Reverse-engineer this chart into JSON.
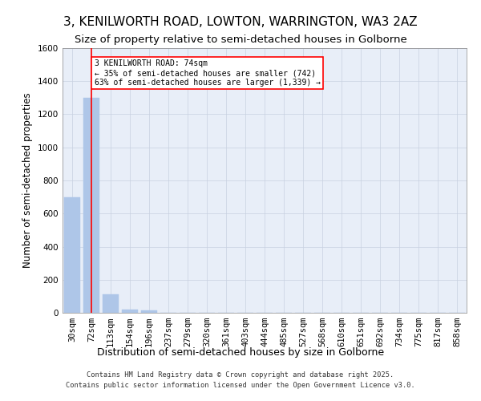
{
  "title": "3, KENILWORTH ROAD, LOWTON, WARRINGTON, WA3 2AZ",
  "subtitle": "Size of property relative to semi-detached houses in Golborne",
  "xlabel": "Distribution of semi-detached houses by size in Golborne",
  "ylabel": "Number of semi-detached properties",
  "categories": [
    "30sqm",
    "72sqm",
    "113sqm",
    "154sqm",
    "196sqm",
    "237sqm",
    "279sqm",
    "320sqm",
    "361sqm",
    "403sqm",
    "444sqm",
    "485sqm",
    "527sqm",
    "568sqm",
    "610sqm",
    "651sqm",
    "692sqm",
    "734sqm",
    "775sqm",
    "817sqm",
    "858sqm"
  ],
  "values": [
    700,
    1300,
    110,
    20,
    14,
    0,
    0,
    0,
    0,
    0,
    0,
    0,
    0,
    0,
    0,
    0,
    0,
    0,
    0,
    0,
    0
  ],
  "bar_color": "#aec6e8",
  "bar_edge_color": "#aec6e8",
  "grid_color": "#c8d0e0",
  "background_color": "#e8eef8",
  "red_line_index": 1,
  "annotation_text": "3 KENILWORTH ROAD: 74sqm\n← 35% of semi-detached houses are smaller (742)\n63% of semi-detached houses are larger (1,339) →",
  "ylim": [
    0,
    1600
  ],
  "yticks": [
    0,
    200,
    400,
    600,
    800,
    1000,
    1200,
    1400,
    1600
  ],
  "footer": "Contains HM Land Registry data © Crown copyright and database right 2025.\nContains public sector information licensed under the Open Government Licence v3.0.",
  "title_fontsize": 11,
  "subtitle_fontsize": 9.5,
  "tick_fontsize": 7.5,
  "ylabel_fontsize": 8.5,
  "xlabel_fontsize": 9
}
